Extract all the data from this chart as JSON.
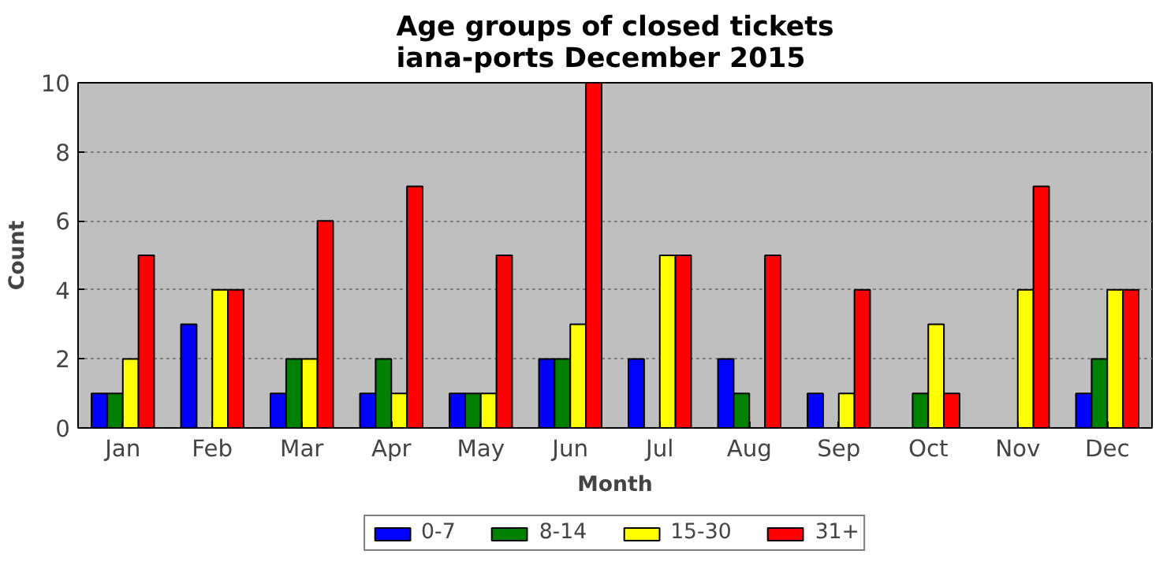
{
  "chart_data": {
    "type": "bar",
    "title": "Age groups of closed tickets\niana-ports December 2015",
    "xlabel": "Month",
    "ylabel": "Count",
    "categories": [
      "Jan",
      "Feb",
      "Mar",
      "Apr",
      "May",
      "Jun",
      "Jul",
      "Aug",
      "Sep",
      "Oct",
      "Nov",
      "Dec"
    ],
    "series": [
      {
        "name": "0-7",
        "color": "#0000ff",
        "values": [
          1,
          3,
          1,
          1,
          1,
          2,
          2,
          2,
          1,
          0,
          0,
          1
        ]
      },
      {
        "name": "8-14",
        "color": "#008000",
        "values": [
          1,
          0,
          2,
          2,
          1,
          2,
          0,
          1,
          0,
          1,
          0,
          2
        ]
      },
      {
        "name": "15-30",
        "color": "#ffff00",
        "values": [
          2,
          4,
          2,
          1,
          1,
          3,
          5,
          0,
          1,
          3,
          4,
          4
        ]
      },
      {
        "name": "31+",
        "color": "#ff0000",
        "values": [
          5,
          4,
          6,
          7,
          5,
          10,
          5,
          5,
          4,
          1,
          7,
          4
        ]
      }
    ],
    "ylim": [
      0,
      10
    ],
    "yticks": [
      0,
      2,
      4,
      6,
      8,
      10
    ],
    "grid": "y",
    "legend": "bottom"
  }
}
